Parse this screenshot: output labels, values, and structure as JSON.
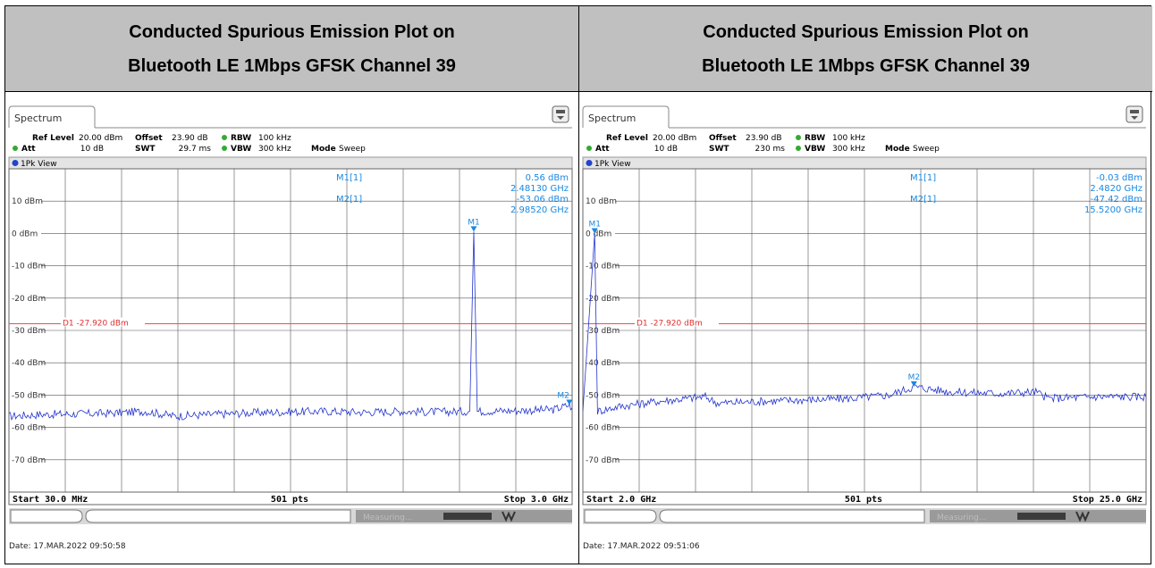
{
  "panels": [
    {
      "title_line1": "Conducted Spurious Emission Plot on",
      "title_line2": "Bluetooth LE 1Mbps GFSK Channel 39",
      "tab": "Spectrum",
      "settings": {
        "ref_level_label": "Ref Level",
        "ref_level": "20.00 dBm",
        "offset_label": "Offset",
        "offset": "23.90 dB",
        "rbw_label": "RBW",
        "rbw": "100 kHz",
        "att_label": "Att",
        "att": "10 dB",
        "swt_label": "SWT",
        "swt": "29.7 ms",
        "vbw_label": "VBW",
        "vbw": "300 kHz",
        "mode_label": "Mode",
        "mode": "Sweep"
      },
      "view_label": "1Pk View",
      "marker_readout": [
        {
          "name": "M1[1]",
          "level": "0.56 dBm",
          "freq": "2.48130 GHz"
        },
        {
          "name": "M2[1]",
          "level": "-53.06 dBm",
          "freq": "2.98520 GHz"
        }
      ],
      "display_line_label": "D1 -27.920 dBm",
      "start_label": "Start 30.0 MHz",
      "points_label": "501 pts",
      "stop_label": "Stop 3.0 GHz",
      "status_text": "Measuring...",
      "date": "Date: 17.MAR.2022  09:50:58"
    },
    {
      "title_line1": "Conducted Spurious Emission Plot on",
      "title_line2": "Bluetooth LE 1Mbps GFSK Channel 39",
      "tab": "Spectrum",
      "settings": {
        "ref_level_label": "Ref Level",
        "ref_level": "20.00 dBm",
        "offset_label": "Offset",
        "offset": "23.90 dB",
        "rbw_label": "RBW",
        "rbw": "100 kHz",
        "att_label": "Att",
        "att": "10 dB",
        "swt_label": "SWT",
        "swt": "230 ms",
        "vbw_label": "VBW",
        "vbw": "300 kHz",
        "mode_label": "Mode",
        "mode": "Sweep"
      },
      "view_label": "1Pk View",
      "marker_readout": [
        {
          "name": "M1[1]",
          "level": "-0.03 dBm",
          "freq": "2.4820 GHz"
        },
        {
          "name": "M2[1]",
          "level": "-47.42 dBm",
          "freq": "15.5200 GHz"
        }
      ],
      "display_line_label": "D1 -27.920 dBm",
      "start_label": "Start 2.0 GHz",
      "points_label": "501 pts",
      "stop_label": "Stop 25.0 GHz",
      "status_text": "Measuring...",
      "date": "Date: 17.MAR.2022  09:51:06"
    }
  ],
  "chart_data": [
    {
      "type": "line",
      "xlim": [
        0.03,
        3.0
      ],
      "ylim": [
        -80,
        20
      ],
      "ytick_labels": [
        "10 dBm",
        "0 dBm",
        "-10 dBm",
        "-20 dBm",
        "-30 dBm",
        "-40 dBm",
        "-50 dBm",
        "-60 dBm",
        "-70 dBm"
      ],
      "ytick_values": [
        10,
        0,
        -10,
        -20,
        -30,
        -40,
        -50,
        -60,
        -70
      ],
      "display_line": -27.92,
      "markers": [
        {
          "label": "M1",
          "x": 2.4813,
          "y": 0.56
        },
        {
          "label": "M2",
          "x": 2.9852,
          "y": -53.06
        }
      ],
      "trace": {
        "x": [
          0.03,
          0.2,
          0.4,
          0.6,
          0.75,
          0.9,
          1.1,
          1.3,
          1.5,
          1.7,
          1.9,
          2.1,
          2.3,
          2.46,
          2.4813,
          2.5,
          2.7,
          2.9,
          2.9852,
          3.0
        ],
        "y": [
          -56.5,
          -56,
          -55.8,
          -55.5,
          -55,
          -56.5,
          -56,
          -55.5,
          -55.2,
          -55,
          -55.3,
          -55,
          -55.2,
          -55,
          0.56,
          -55,
          -54.8,
          -54.5,
          -53.06,
          -54
        ]
      }
    },
    {
      "type": "line",
      "xlim": [
        2.0,
        25.0
      ],
      "ylim": [
        -80,
        20
      ],
      "ytick_labels": [
        "10 dBm",
        "0 dBm",
        "-10 dBm",
        "-20 dBm",
        "-30 dBm",
        "-40 dBm",
        "-50 dBm",
        "-60 dBm",
        "-70 dBm"
      ],
      "ytick_values": [
        10,
        0,
        -10,
        -20,
        -30,
        -40,
        -50,
        -60,
        -70
      ],
      "display_line": -27.92,
      "markers": [
        {
          "label": "M1",
          "x": 2.482,
          "y": -0.03
        },
        {
          "label": "M2",
          "x": 15.52,
          "y": -47.42
        }
      ],
      "trace": {
        "x": [
          2.0,
          2.482,
          2.6,
          3.5,
          5.0,
          7.0,
          7.5,
          9.0,
          11.0,
          13.0,
          14.5,
          15.52,
          17.0,
          19.0,
          20.5,
          21.0,
          23.0,
          25.0
        ],
        "y": [
          -55,
          -0.03,
          -55,
          -53.5,
          -52,
          -50.5,
          -52.5,
          -52,
          -51.5,
          -51,
          -50,
          -47.42,
          -49,
          -49.5,
          -49,
          -51,
          -50.5,
          -50.5
        ]
      }
    }
  ]
}
